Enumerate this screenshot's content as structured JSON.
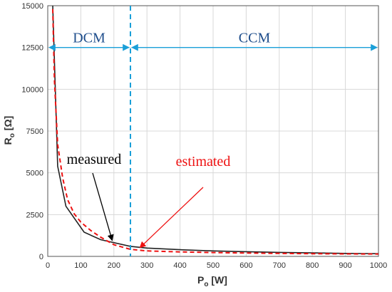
{
  "chart_data": {
    "type": "line",
    "xlabel": "P",
    "xlabel_sub": "o",
    "xlabel_unit": " [W]",
    "ylabel": "R",
    "ylabel_sub": "o",
    "ylabel_unit": " [Ω]",
    "xlim": [
      0,
      1000
    ],
    "ylim": [
      0,
      15000
    ],
    "xticks": [
      0,
      100,
      200,
      300,
      400,
      500,
      600,
      700,
      800,
      900,
      1000
    ],
    "yticks": [
      0,
      2500,
      5000,
      7500,
      10000,
      12500,
      15000
    ],
    "grid": true,
    "series": [
      {
        "name": "measured",
        "color": "#222222",
        "style": "solid",
        "x": [
          15,
          30,
          55,
          110,
          160,
          250,
          300,
          400,
          500,
          600,
          700,
          800,
          900,
          1000
        ],
        "y": [
          15000,
          5400,
          3000,
          1450,
          1000,
          600,
          500,
          400,
          330,
          280,
          240,
          210,
          180,
          160
        ]
      },
      {
        "name": "estimated",
        "color": "#ee1111",
        "style": "dashed",
        "x": [
          15,
          20,
          30,
          45,
          60,
          80,
          100,
          130,
          160,
          200,
          250,
          300,
          400,
          500,
          600,
          700,
          800,
          900,
          1000
        ],
        "y": [
          14800,
          10600,
          6700,
          4700,
          3400,
          2550,
          2050,
          1550,
          1150,
          700,
          420,
          330,
          270,
          230,
          200,
          180,
          160,
          150,
          140
        ]
      }
    ],
    "boundary": {
      "x": 250,
      "color": "#1a9fd8"
    },
    "regions": [
      {
        "label": "DCM",
        "from": 0,
        "to": 250,
        "y": 12500
      },
      {
        "label": "CCM",
        "from": 250,
        "to": 1000,
        "y": 12500
      }
    ],
    "annotations": {
      "measured": {
        "text": "measured",
        "color": "#000000",
        "target_x": 195,
        "target_y": 950
      },
      "estimated": {
        "text": "estimated",
        "color": "#ee1111",
        "target_x": 285,
        "target_y": 350
      }
    }
  }
}
